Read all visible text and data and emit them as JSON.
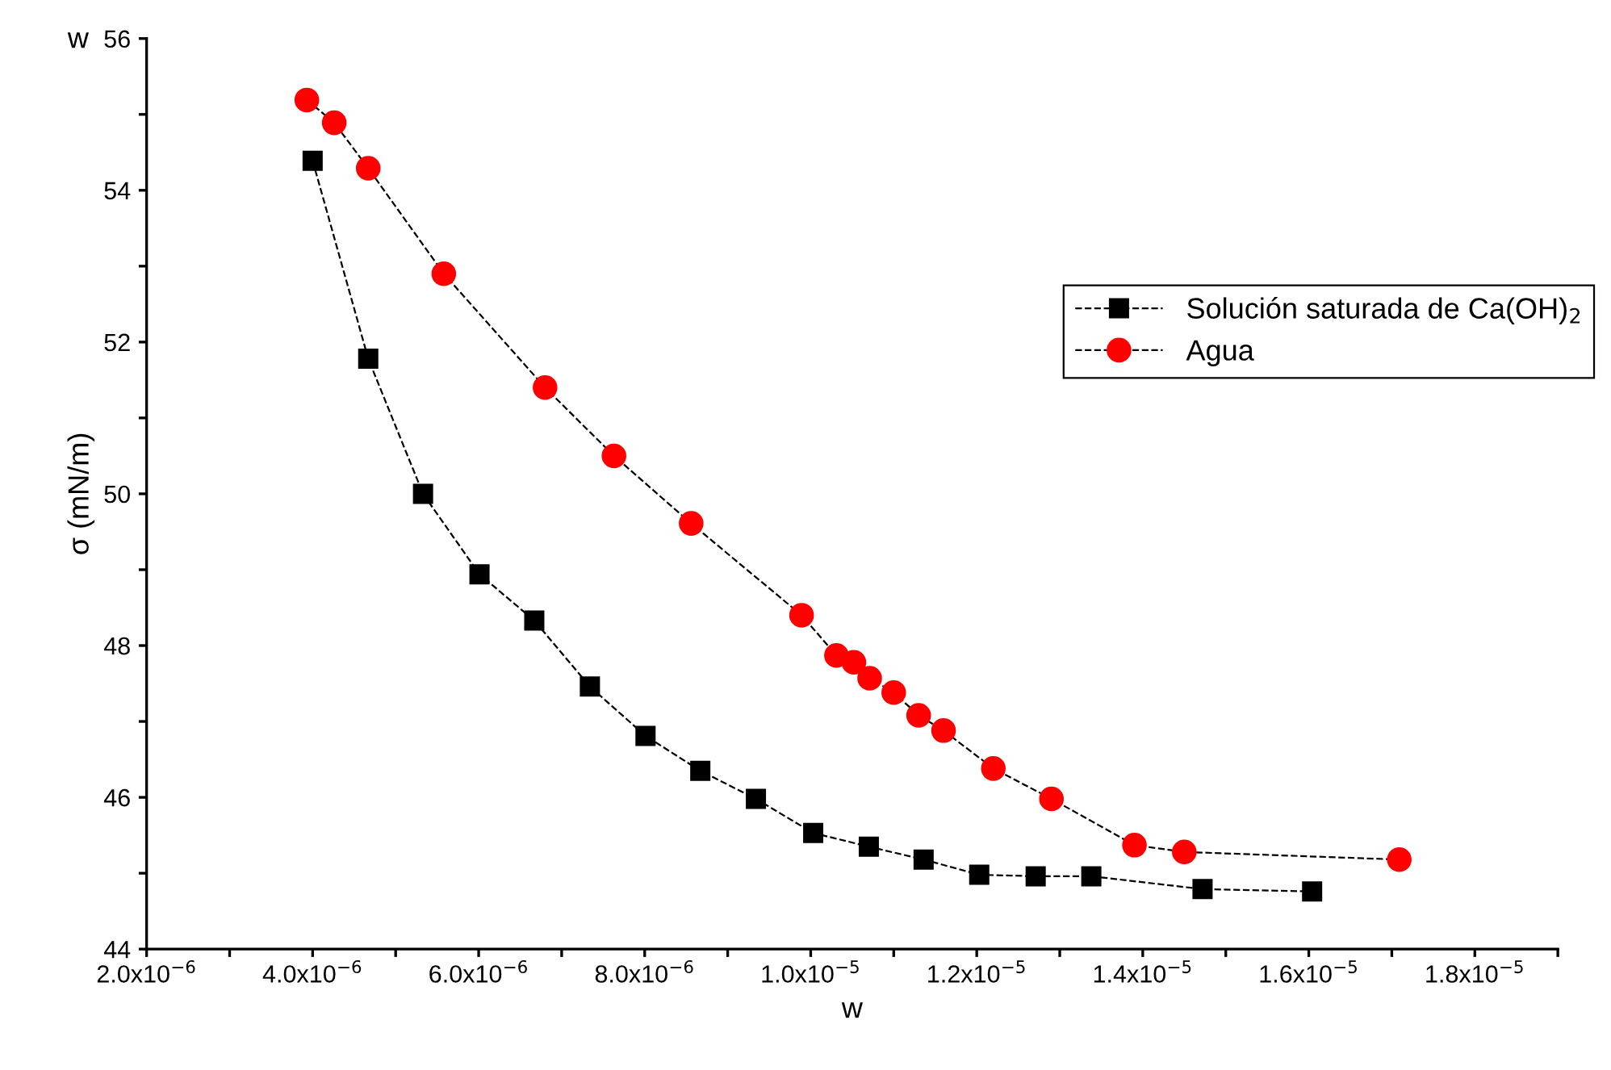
{
  "chart_data": {
    "type": "line",
    "xlabel": "w",
    "ylabel": "σ (mN/m)",
    "annotations": [
      "w"
    ],
    "xlim": [
      2e-06,
      1.9e-05
    ],
    "ylim": [
      44,
      56
    ],
    "xticks": [
      {
        "value": 2e-06,
        "label": "2.0x10$^{−6}$"
      },
      {
        "value": 3e-06,
        "label": null
      },
      {
        "value": 4e-06,
        "label": "4.0x10$^{−6}$"
      },
      {
        "value": 5e-06,
        "label": null
      },
      {
        "value": 6e-06,
        "label": "6.0x10$^{−6}$"
      },
      {
        "value": 7e-06,
        "label": null
      },
      {
        "value": 8e-06,
        "label": "8.0x10$^{−6}$"
      },
      {
        "value": 9e-06,
        "label": null
      },
      {
        "value": 1e-05,
        "label": "1.0x10$^{−5}$"
      },
      {
        "value": 1.1e-05,
        "label": null
      },
      {
        "value": 1.2e-05,
        "label": "1.2x10$^{−5}$"
      },
      {
        "value": 1.3e-05,
        "label": null
      },
      {
        "value": 1.4e-05,
        "label": "1.4x10$^{−5}$"
      },
      {
        "value": 1.5e-05,
        "label": null
      },
      {
        "value": 1.6e-05,
        "label": "1.6x10$^{−5}$"
      },
      {
        "value": 1.7e-05,
        "label": null
      },
      {
        "value": 1.8e-05,
        "label": "1.8x10$^{−5}$"
      },
      {
        "value": 1.9e-05,
        "label": null
      }
    ],
    "yticks": [
      44,
      {
        "value": 45,
        "label": null
      },
      46,
      {
        "value": 47,
        "label": null
      },
      48,
      {
        "value": 49,
        "label": null
      },
      50,
      {
        "value": 51,
        "label": null
      },
      52,
      {
        "value": 53,
        "label": null
      },
      54,
      {
        "value": 55,
        "label": null
      },
      56
    ],
    "grid": false,
    "legend": "top right",
    "line_style": "dashed",
    "series": [
      {
        "name": "Solución saturada de Ca(OH)$_{2}$",
        "color": "#000000",
        "marker": "square",
        "x": [
          4e-06,
          4.67e-06,
          5.33e-06,
          6.01e-06,
          6.67e-06,
          7.34e-06,
          8.01e-06,
          8.67e-06,
          9.34e-06,
          1.003e-05,
          1.07e-05,
          1.136e-05,
          1.203e-05,
          1.271e-05,
          1.338e-05,
          1.472e-05,
          1.604e-05
        ],
        "values": [
          54.39,
          51.78,
          50.0,
          48.94,
          48.33,
          47.46,
          46.81,
          46.35,
          45.98,
          45.53,
          45.35,
          45.18,
          44.98,
          44.96,
          44.96,
          44.79,
          44.76
        ]
      },
      {
        "name": "Agua",
        "color": "#ff0000",
        "marker": "circle",
        "x": [
          3.93e-06,
          4.26e-06,
          4.67e-06,
          5.58e-06,
          6.8e-06,
          7.63e-06,
          8.56e-06,
          9.89e-06,
          1.031e-05,
          1.052e-05,
          1.071e-05,
          1.1e-05,
          1.13e-05,
          1.16e-05,
          1.22e-05,
          1.29e-05,
          1.39e-05,
          1.45e-05,
          1.709e-05
        ],
        "values": [
          55.19,
          54.89,
          54.29,
          52.9,
          51.4,
          50.5,
          49.61,
          48.4,
          47.87,
          47.78,
          47.57,
          47.38,
          47.08,
          46.88,
          46.38,
          45.98,
          45.37,
          45.28,
          45.18
        ]
      }
    ]
  }
}
